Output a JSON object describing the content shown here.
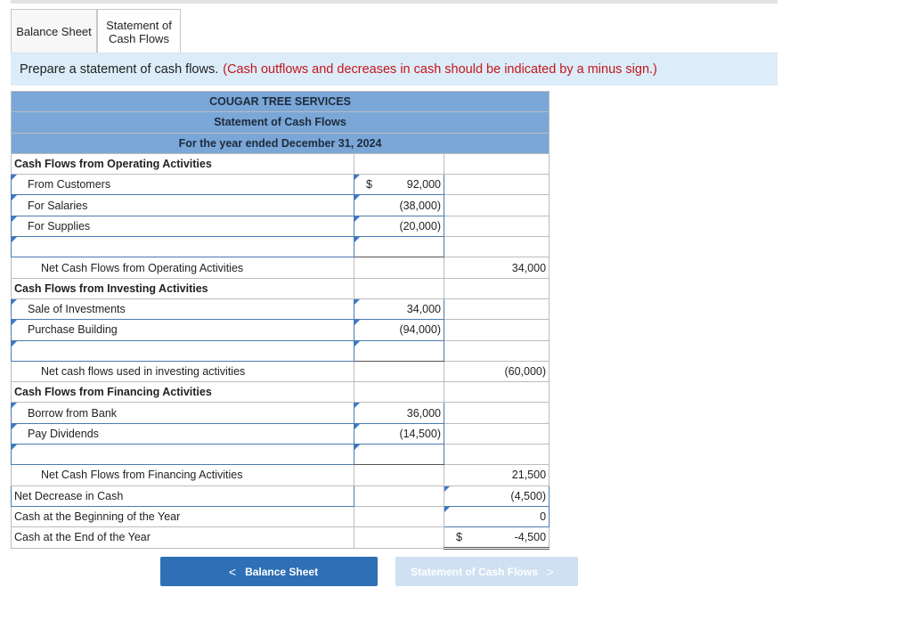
{
  "tabs": [
    "Balance Sheet",
    "Statement of Cash Flows"
  ],
  "instruction": {
    "text": "Prepare a statement of cash flows.",
    "note": "(Cash outflows and decreases in cash should be indicated by a minus sign.)"
  },
  "statement": {
    "company": "COUGAR TREE SERVICES",
    "title": "Statement of Cash Flows",
    "period": "For the year ended December 31, 2024",
    "currency": "$",
    "operating": {
      "heading": "Cash Flows from Operating Activities",
      "items": [
        {
          "label": "From Customers",
          "amount": "92,000"
        },
        {
          "label": "For Salaries",
          "amount": "(38,000)"
        },
        {
          "label": "For Supplies",
          "amount": "(20,000)"
        }
      ],
      "net_label": "Net Cash Flows from Operating Activities",
      "net_amount": "34,000"
    },
    "investing": {
      "heading": "Cash Flows from Investing Activities",
      "items": [
        {
          "label": "Sale of Investments",
          "amount": "34,000"
        },
        {
          "label": "Purchase Building",
          "amount": "(94,000)"
        }
      ],
      "net_label": "Net cash flows used in investing activities",
      "net_amount": "(60,000)"
    },
    "financing": {
      "heading": "Cash Flows from Financing Activities",
      "items": [
        {
          "label": "Borrow from Bank",
          "amount": "36,000"
        },
        {
          "label": "Pay Dividends",
          "amount": "(14,500)"
        }
      ],
      "net_label": "Net Cash Flows from Financing Activities",
      "net_amount": "21,500"
    },
    "net_change": {
      "label": "Net Decrease in Cash",
      "amount": "(4,500)"
    },
    "beginning": {
      "label": "Cash at the Beginning of the Year",
      "amount": "0"
    },
    "ending": {
      "label": "Cash at the End of the Year",
      "amount": "-4,500"
    }
  },
  "nav": {
    "prev_label": "Balance Sheet",
    "next_label": "Statement of Cash Flows",
    "prev_icon": "chevron-left-icon",
    "next_icon": "chevron-right-icon"
  },
  "colors": {
    "header_blue": "#7aa7d8",
    "instruction_bg": "#dcecf8",
    "note_red": "#c4161c",
    "button_blue": "#2f6fb5",
    "button_disabled": "#cfe0f2"
  }
}
